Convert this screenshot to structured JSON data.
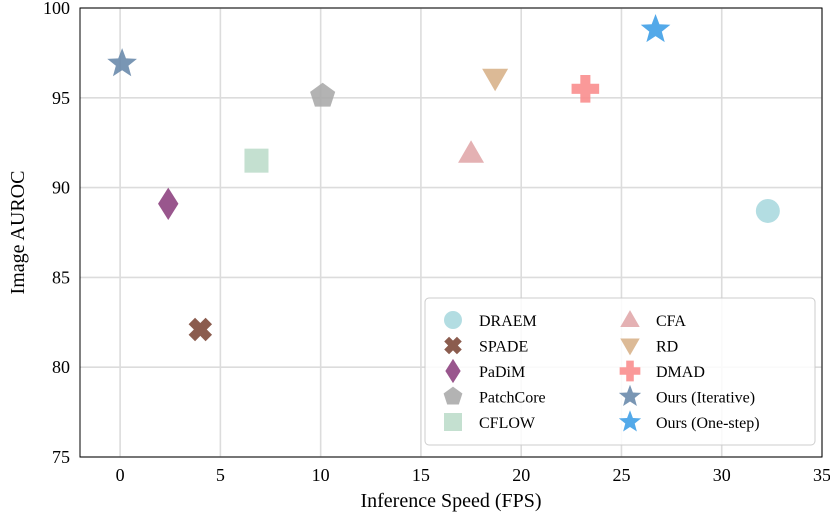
{
  "chart_data": {
    "type": "scatter",
    "xlabel": "Inference Speed (FPS)",
    "ylabel": "Image AUROC",
    "xlim": [
      -2,
      35
    ],
    "ylim": [
      75,
      100
    ],
    "xticks": [
      "0",
      "5",
      "10",
      "15",
      "20",
      "25",
      "30",
      "35"
    ],
    "yticks": [
      "75",
      "80",
      "85",
      "90",
      "95",
      "100"
    ],
    "grid": true,
    "legend_position": "bottom-right",
    "series": [
      {
        "name": "DRAEM",
        "marker": "circle",
        "color": "#a9d8de",
        "x": 32.3,
        "y": 88.7
      },
      {
        "name": "SPADE",
        "marker": "x",
        "color": "#7b4535",
        "x": 4.0,
        "y": 82.1
      },
      {
        "name": "PaDiM",
        "marker": "diamond",
        "color": "#8b3f7d",
        "x": 2.4,
        "y": 89.1
      },
      {
        "name": "PatchCore",
        "marker": "pentagon",
        "color": "#a8a8a8",
        "x": 10.1,
        "y": 95.1
      },
      {
        "name": "CFLOW",
        "marker": "square",
        "color": "#bcdcca",
        "x": 6.8,
        "y": 91.5
      },
      {
        "name": "CFA",
        "marker": "triangle-up",
        "color": "#e0a6a8",
        "x": 17.5,
        "y": 91.9
      },
      {
        "name": "RD",
        "marker": "triangle-down",
        "color": "#d7b087",
        "x": 18.7,
        "y": 96.1
      },
      {
        "name": "DMAD",
        "marker": "plus",
        "color": "#f98b8b",
        "x": 23.2,
        "y": 95.5
      },
      {
        "name": "Ours (Iterative)",
        "marker": "star",
        "color": "#6688aa",
        "x": 0.1,
        "y": 96.9
      },
      {
        "name": "Ours (One-step)",
        "marker": "star",
        "color": "#3b9de6",
        "x": 26.7,
        "y": 98.8
      }
    ]
  }
}
